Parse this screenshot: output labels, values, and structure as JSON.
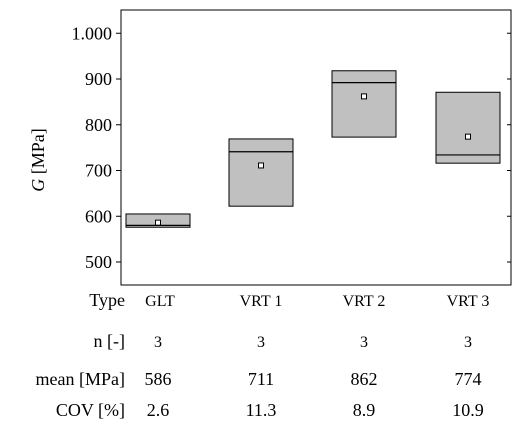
{
  "chart_data": {
    "type": "box",
    "ylabel_symbol": "G",
    "ylabel_unit": "[MPa]",
    "ylim": [
      450,
      1050
    ],
    "yticks": [
      500,
      600,
      700,
      800,
      900,
      1000
    ],
    "ytick_labels": [
      "500",
      "600",
      "700",
      "800",
      "900",
      "1.000"
    ],
    "grid": false,
    "categories": [
      "GLT",
      "VRT 1",
      "VRT 2",
      "VRT 3"
    ],
    "boxes": [
      {
        "category": "GLT",
        "min": 576,
        "median": 580,
        "max": 605,
        "mean": 586
      },
      {
        "category": "VRT 1",
        "min": 622,
        "median": 741,
        "max": 769,
        "mean": 711
      },
      {
        "category": "VRT 2",
        "min": 773,
        "median": 892,
        "max": 918,
        "mean": 862
      },
      {
        "category": "VRT 3",
        "min": 716,
        "median": 734,
        "max": 871,
        "mean": 774
      }
    ],
    "box_color": "#c0c0c0",
    "table": {
      "rows": [
        {
          "label": "Type",
          "values": [
            "GLT",
            "VRT 1",
            "VRT 2",
            "VRT 3"
          ],
          "style": "small"
        },
        {
          "label": "n [-]",
          "values": [
            "3",
            "3",
            "3",
            "3"
          ],
          "style": "small"
        },
        {
          "label": "mean [MPa]",
          "values": [
            "586",
            "711",
            "862",
            "774"
          ],
          "style": "big"
        },
        {
          "label": "COV [%]",
          "values": [
            "2.6",
            "11.3",
            "8.9",
            "10.9"
          ],
          "style": "big"
        }
      ]
    }
  }
}
